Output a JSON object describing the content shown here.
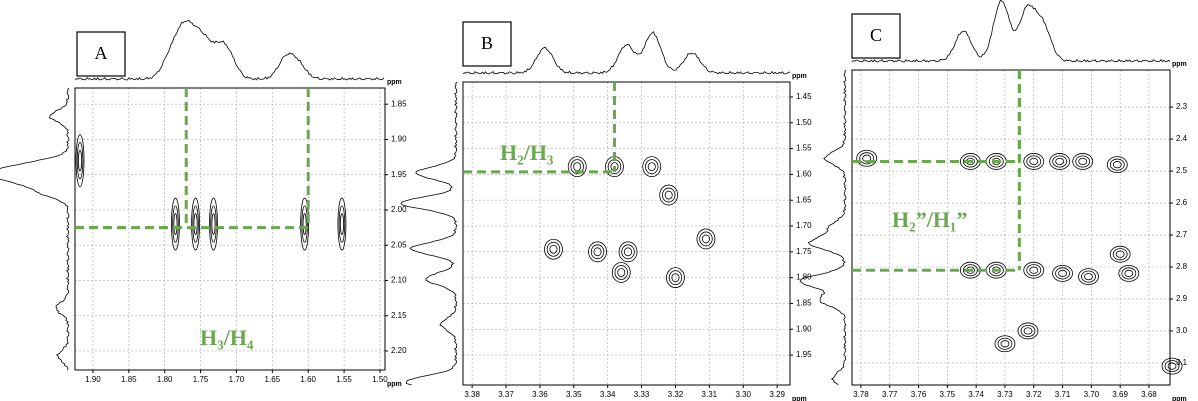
{
  "chart_data": [
    {
      "type": "nmr-2d",
      "label": "A",
      "annotation": "H₃/H₄",
      "xlabel": "ppm",
      "ylabel": "ppm",
      "color": "#6aa84f",
      "xlim": [
        1.925,
        1.493
      ],
      "ylim": [
        1.827,
        2.227
      ],
      "xticks": [
        {
          "value": 1.9,
          "label": "1.90"
        },
        1.85,
        {
          "value": 1.8,
          "label": "1.80"
        },
        1.75,
        {
          "value": 1.7,
          "label": "1.70"
        },
        1.65,
        {
          "value": 1.6,
          "label": "1.60"
        },
        1.55,
        {
          "value": 1.5,
          "label": "1.50"
        }
      ],
      "yticks": [
        1.85,
        {
          "value": 1.9,
          "label": "1.90"
        },
        1.95,
        {
          "value": 2.0,
          "label": "2.00"
        },
        2.05,
        {
          "value": 2.1,
          "label": "2.10"
        },
        2.15,
        {
          "value": 2.2,
          "label": "2.20"
        }
      ],
      "crosshairs": [
        {
          "x": 1.77,
          "y": 2.025
        },
        {
          "x": 1.6,
          "y": 2.025
        }
      ],
      "peaks": [
        {
          "x": 1.785,
          "y": 2.02
        },
        {
          "x": 1.757,
          "y": 2.02
        },
        {
          "x": 1.732,
          "y": 2.02
        },
        {
          "x": 1.605,
          "y": 2.02
        },
        {
          "x": 1.553,
          "y": 2.02
        },
        {
          "x": 1.918,
          "y": 1.93
        }
      ]
    },
    {
      "type": "nmr-2d",
      "label": "B",
      "annotation": "H₂/H₃",
      "xlabel": "ppm",
      "ylabel": "ppm",
      "color": "#6aa84f",
      "xlim": [
        3.3827,
        3.2862
      ],
      "ylim": [
        1.421,
        2.008
      ],
      "xticks": [
        3.38,
        3.37,
        3.36,
        3.35,
        3.34,
        3.33,
        3.32,
        3.31,
        {
          "value": 3.3,
          "label": "3.30"
        },
        3.29
      ],
      "yticks": [
        1.45,
        {
          "value": 1.5,
          "label": "1.50"
        },
        1.55,
        {
          "value": 1.6,
          "label": "1.60"
        },
        1.65,
        {
          "value": 1.7,
          "label": "1.70"
        },
        1.75,
        {
          "value": 1.8,
          "label": "1.80"
        },
        1.85,
        {
          "value": 1.9,
          "label": "1.90"
        },
        1.95
      ],
      "crosshairs": [
        {
          "x": 3.338,
          "y": 1.595
        }
      ],
      "peaks": [
        {
          "x": 3.349,
          "y": 1.585
        },
        {
          "x": 3.338,
          "y": 1.585
        },
        {
          "x": 3.327,
          "y": 1.585
        },
        {
          "x": 3.356,
          "y": 1.745
        },
        {
          "x": 3.343,
          "y": 1.75
        },
        {
          "x": 3.334,
          "y": 1.75
        },
        {
          "x": 3.336,
          "y": 1.79
        },
        {
          "x": 3.32,
          "y": 1.8
        },
        {
          "x": 3.311,
          "y": 1.725
        },
        {
          "x": 3.322,
          "y": 1.64
        }
      ]
    },
    {
      "type": "nmr-2d",
      "label": "C",
      "annotation": "H₂”/H₁”",
      "xlabel": "ppm",
      "ylabel": "ppm",
      "color": "#6aa84f",
      "xlim": [
        3.7831,
        3.6727
      ],
      "ylim": [
        2.184,
        3.169
      ],
      "xticks": [
        3.78,
        3.77,
        3.76,
        3.75,
        3.74,
        3.73,
        3.72,
        3.71,
        {
          "value": 3.7,
          "label": "3.70"
        },
        3.69,
        3.68
      ],
      "yticks": [
        2.3,
        2.4,
        2.5,
        2.6,
        2.7,
        2.8,
        2.9,
        {
          "value": 3.0,
          "label": "3.0"
        },
        3.1
      ],
      "crosshairs": [
        {
          "x": 3.725,
          "y": 2.47
        },
        {
          "x": 3.725,
          "y": 2.81
        }
      ],
      "peaks": [
        {
          "x": 3.742,
          "y": 2.47
        },
        {
          "x": 3.733,
          "y": 2.47
        },
        {
          "x": 3.72,
          "y": 2.47
        },
        {
          "x": 3.711,
          "y": 2.47
        },
        {
          "x": 3.703,
          "y": 2.47
        },
        {
          "x": 3.691,
          "y": 2.48
        },
        {
          "x": 3.778,
          "y": 2.46
        },
        {
          "x": 3.742,
          "y": 2.81
        },
        {
          "x": 3.733,
          "y": 2.81
        },
        {
          "x": 3.72,
          "y": 2.81
        },
        {
          "x": 3.71,
          "y": 2.82
        },
        {
          "x": 3.701,
          "y": 2.83
        },
        {
          "x": 3.687,
          "y": 2.82
        },
        {
          "x": 3.69,
          "y": 2.76
        },
        {
          "x": 3.722,
          "y": 3.0
        },
        {
          "x": 3.73,
          "y": 3.04
        },
        {
          "x": 3.672,
          "y": 3.11
        }
      ]
    }
  ]
}
